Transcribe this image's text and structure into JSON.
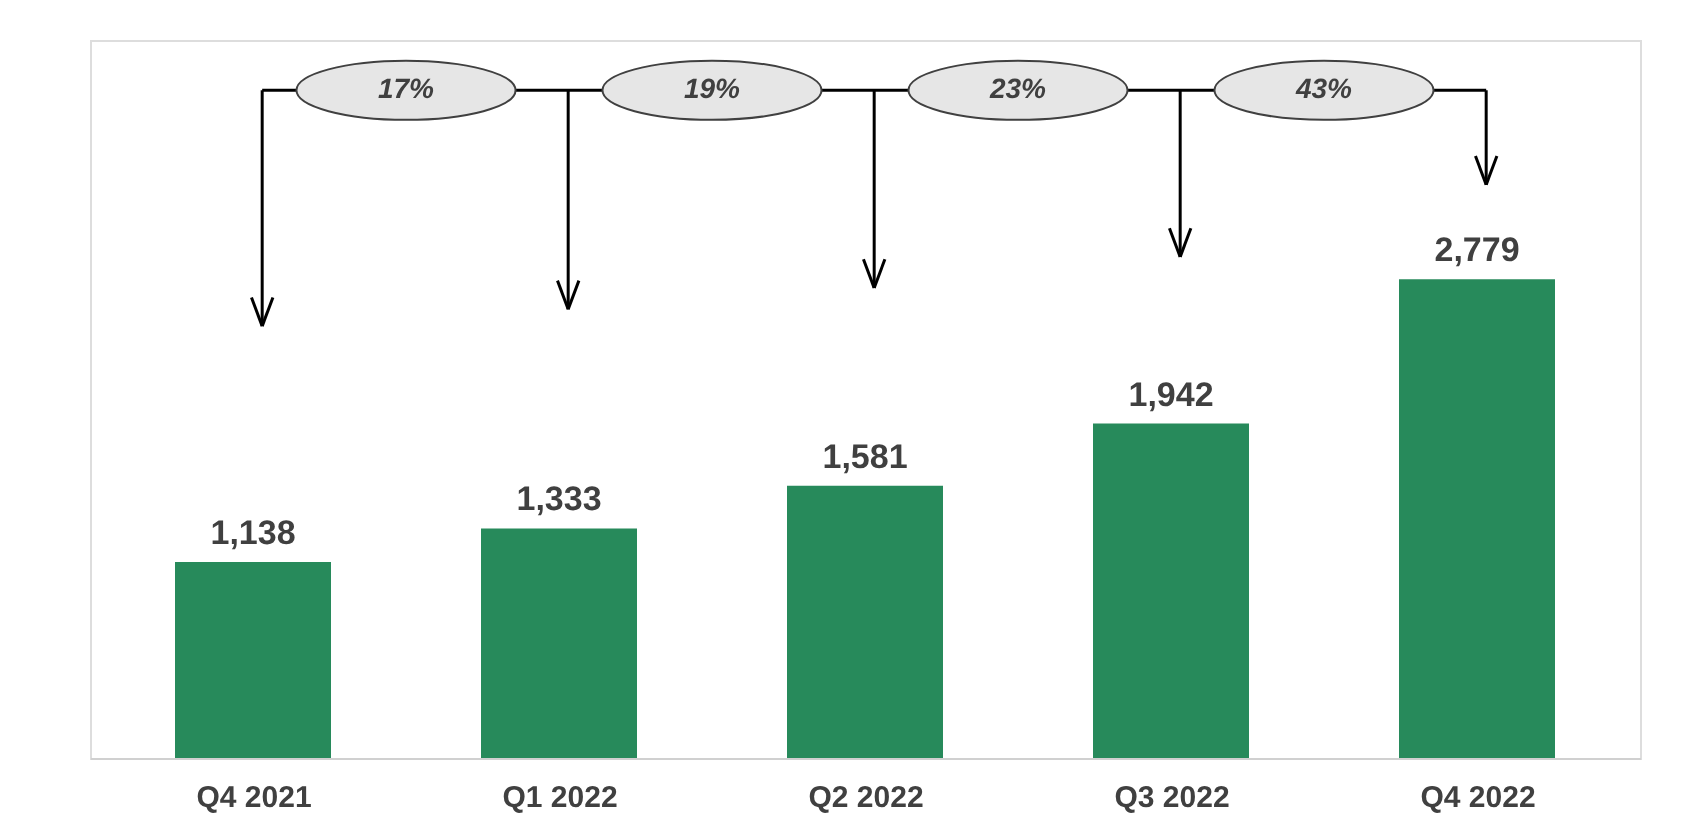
{
  "chart_data": {
    "type": "bar",
    "categories": [
      "Q4 2021",
      "Q1 2022",
      "Q2 2022",
      "Q3 2022",
      "Q4 2022"
    ],
    "values": [
      1138,
      1333,
      1581,
      1942,
      2779
    ],
    "color": "#278a5b",
    "value_labels": [
      "1,138",
      "1,333",
      "1,581",
      "1,942",
      "2,779"
    ],
    "annotations": [
      "17%",
      "19%",
      "23%",
      "43%"
    ]
  }
}
